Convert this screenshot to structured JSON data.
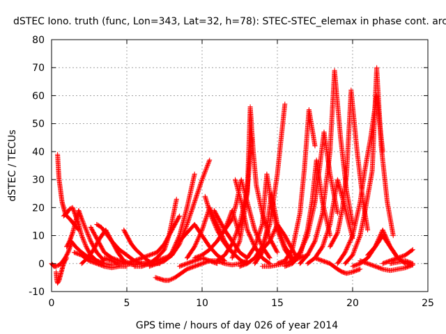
{
  "chart_data": {
    "type": "scatter",
    "title": "dSTEC Iono. truth (func, Lon=343, Lat=32, h=78): STEC-STEC_elemax in phase cont. arc",
    "xlabel": "GPS time / hours of day 026 of year 2014",
    "ylabel": "dSTEC  / TECUs",
    "xlim": [
      0,
      25
    ],
    "ylim": [
      -10,
      80
    ],
    "xticks": [
      0,
      5,
      10,
      15,
      20,
      25
    ],
    "yticks": [
      -10,
      0,
      10,
      20,
      30,
      40,
      50,
      60,
      70,
      80
    ],
    "grid": true,
    "marker": "+",
    "color": "#ff0000",
    "series": [
      {
        "x": [
          0.0,
          0.15,
          0.3,
          0.5,
          0.7,
          0.9,
          1.1,
          1.3
        ],
        "y": [
          0,
          -1,
          -1,
          -0.5,
          0.5,
          2,
          4,
          7
        ]
      },
      {
        "x": [
          0.3,
          0.35,
          0.4,
          0.5,
          0.6,
          0.7,
          0.8,
          0.9,
          1.0
        ],
        "y": [
          -3,
          -6,
          -7,
          -6,
          -4,
          -2,
          0,
          1,
          2
        ]
      },
      {
        "x": [
          0.4,
          0.45,
          0.5,
          0.6,
          0.7,
          0.8,
          0.9,
          1.0,
          1.2,
          1.5,
          1.8
        ],
        "y": [
          39,
          34,
          30,
          26,
          22,
          20,
          18,
          17,
          16,
          14,
          12
        ]
      },
      {
        "x": [
          0.8,
          1.0,
          1.2,
          1.4,
          1.6,
          1.8,
          2.0,
          2.3,
          2.6,
          3.0,
          3.4
        ],
        "y": [
          17,
          18,
          19.5,
          20,
          17,
          14,
          10,
          6,
          3,
          1,
          0
        ]
      },
      {
        "x": [
          1.0,
          1.2,
          1.4,
          1.6,
          1.8,
          2.0,
          2.3,
          2.6,
          3.0,
          3.5
        ],
        "y": [
          6,
          8,
          11,
          15,
          19,
          16,
          12,
          8,
          4,
          1
        ]
      },
      {
        "x": [
          1.3,
          1.6,
          2.0,
          2.5,
          3.0,
          3.5,
          4.0,
          4.5
        ],
        "y": [
          8,
          6,
          4,
          2,
          1,
          0,
          -0.5,
          -0.5
        ]
      },
      {
        "x": [
          1.5,
          2.0,
          2.5,
          3.0,
          3.5,
          4.0,
          4.5,
          5.0
        ],
        "y": [
          4,
          3,
          1,
          0,
          -1,
          -1.5,
          -1,
          -1
        ]
      },
      {
        "x": [
          2.0,
          2.4,
          2.8,
          3.2,
          3.6,
          4.0,
          4.4,
          4.8,
          5.2
        ],
        "y": [
          0,
          2,
          5,
          9,
          12,
          8,
          4,
          1,
          0
        ]
      },
      {
        "x": [
          2.6,
          2.8,
          3.0,
          3.2,
          3.5,
          4.0,
          4.5,
          5.0,
          5.5
        ],
        "y": [
          13,
          11,
          9,
          7,
          4,
          2,
          1,
          0,
          0
        ]
      },
      {
        "x": [
          3.0,
          3.3,
          3.6,
          4.0,
          4.5,
          5.0,
          5.5,
          6.0
        ],
        "y": [
          14,
          13,
          11,
          8,
          5,
          3,
          1,
          0
        ]
      },
      {
        "x": [
          3.5,
          4.0,
          4.5,
          5.0,
          5.5,
          6.0,
          6.5
        ],
        "y": [
          2,
          1,
          0,
          0,
          -0.5,
          0,
          0.5
        ]
      },
      {
        "x": [
          4.8,
          5.0,
          5.3,
          5.6,
          6.0,
          6.4,
          6.8,
          7.2
        ],
        "y": [
          12,
          10,
          7,
          5,
          3,
          1,
          0,
          0
        ]
      },
      {
        "x": [
          5.0,
          5.5,
          6.0,
          6.5,
          7.0,
          7.5,
          8.0,
          8.5
        ],
        "y": [
          0,
          1,
          2,
          3,
          4,
          7,
          12,
          17
        ]
      },
      {
        "x": [
          5.5,
          6.0,
          6.5,
          7.0,
          7.5,
          8.0
        ],
        "y": [
          -1,
          -1,
          0,
          1,
          2,
          3
        ]
      },
      {
        "x": [
          6.0,
          6.5,
          7.0,
          7.5,
          7.8,
          8.0,
          8.3
        ],
        "y": [
          0,
          0,
          2,
          5,
          10,
          15,
          23
        ]
      },
      {
        "x": [
          6.5,
          7.0,
          7.5,
          8.0,
          8.5,
          9.0,
          9.5
        ],
        "y": [
          -1,
          0,
          1,
          4,
          10,
          20,
          32
        ]
      },
      {
        "x": [
          6.9,
          7.2,
          7.5,
          7.8,
          8.2,
          8.6,
          9.0,
          9.5,
          10.0
        ],
        "y": [
          -5,
          -5.5,
          -6,
          -6,
          -5,
          -3.5,
          -2,
          -1,
          0
        ]
      },
      {
        "x": [
          7.0,
          7.5,
          8.0,
          8.5,
          9.0,
          9.5,
          10.0,
          10.5
        ],
        "y": [
          0,
          1,
          3,
          7,
          14,
          22,
          30,
          37
        ]
      },
      {
        "x": [
          8.5,
          9.0,
          9.5,
          10.0,
          10.5,
          11.0,
          11.5
        ],
        "y": [
          8,
          11,
          14,
          10,
          6,
          3,
          1
        ]
      },
      {
        "x": [
          8.5,
          9.0,
          9.5,
          10.0,
          10.5,
          11.0
        ],
        "y": [
          -1,
          0,
          1,
          2,
          1,
          0
        ]
      },
      {
        "x": [
          9.0,
          9.5,
          10.0,
          10.5,
          11.0,
          11.5,
          12.0
        ],
        "y": [
          2,
          6,
          12,
          20,
          14,
          8,
          4
        ]
      },
      {
        "x": [
          9.5,
          10.0,
          10.5,
          11.0,
          11.5,
          12.0,
          12.5
        ],
        "y": [
          2,
          3,
          5,
          8,
          12,
          19,
          10
        ]
      },
      {
        "x": [
          10.0,
          10.5,
          11.0,
          11.5,
          12.0,
          12.5,
          13.0
        ],
        "y": [
          0,
          1,
          1,
          0,
          -0.5,
          0,
          1
        ]
      },
      {
        "x": [
          10.2,
          10.6,
          11.0,
          11.4,
          11.8,
          12.2,
          12.6,
          13.0
        ],
        "y": [
          24,
          17,
          12,
          8,
          5,
          3,
          1,
          0
        ]
      },
      {
        "x": [
          10.8,
          11.0,
          11.5,
          12.0,
          12.5,
          13.0
        ],
        "y": [
          19,
          17,
          12,
          8,
          4,
          2
        ]
      },
      {
        "x": [
          11.0,
          11.5,
          12.0,
          12.5,
          13.0,
          13.3
        ],
        "y": [
          1,
          3,
          7,
          14,
          26,
          45
        ]
      },
      {
        "x": [
          11.5,
          12.0,
          12.3,
          12.6,
          13.0,
          13.5,
          14.0,
          14.5
        ],
        "y": [
          12,
          16,
          22,
          30,
          22,
          12,
          6,
          2
        ]
      },
      {
        "x": [
          12.0,
          12.5,
          13.0,
          13.2,
          13.4,
          13.6,
          14.0,
          14.5,
          15.0
        ],
        "y": [
          2,
          8,
          25,
          56,
          40,
          28,
          18,
          9,
          4
        ]
      },
      {
        "x": [
          12.2,
          12.6,
          13.0,
          13.5,
          14.0,
          14.5
        ],
        "y": [
          30,
          22,
          12,
          6,
          2,
          0
        ]
      },
      {
        "x": [
          12.5,
          13.0,
          13.5,
          14.0,
          14.5,
          15.0,
          15.5
        ],
        "y": [
          -1,
          0,
          2,
          6,
          14,
          32,
          57
        ]
      },
      {
        "x": [
          13.0,
          13.5,
          14.0,
          14.3,
          14.6,
          15.0,
          15.5,
          16.0
        ],
        "y": [
          2,
          6,
          14,
          32,
          22,
          12,
          5,
          1
        ]
      },
      {
        "x": [
          13.5,
          14.0,
          14.3,
          14.6,
          15.0,
          15.5,
          16.0
        ],
        "y": [
          0,
          4,
          12,
          25,
          14,
          6,
          2
        ]
      },
      {
        "x": [
          14.0,
          14.5,
          15.0,
          15.5,
          16.0,
          16.3
        ],
        "y": [
          5,
          8,
          14,
          10,
          5,
          2
        ]
      },
      {
        "x": [
          14.0,
          14.5,
          15.0,
          15.5,
          16.0,
          16.5,
          17.0
        ],
        "y": [
          -1,
          -1,
          -0.5,
          0,
          1,
          2,
          3
        ]
      },
      {
        "x": [
          15.0,
          15.5,
          16.0,
          16.5,
          16.8,
          17.1,
          17.5
        ],
        "y": [
          0,
          1,
          5,
          18,
          34,
          55,
          42
        ]
      },
      {
        "x": [
          15.5,
          16.0,
          16.5,
          17.0,
          17.3,
          17.6,
          18.0,
          18.5
        ],
        "y": [
          -1,
          0,
          3,
          12,
          22,
          37,
          22,
          10
        ]
      },
      {
        "x": [
          16.0,
          16.5,
          17.0,
          17.5,
          17.8,
          18.1,
          18.5,
          19.0
        ],
        "y": [
          1,
          4,
          10,
          22,
          34,
          47,
          32,
          18
        ]
      },
      {
        "x": [
          16.5,
          17.0,
          17.5,
          18.0,
          18.5,
          18.8,
          19.2,
          19.6,
          20.0
        ],
        "y": [
          0,
          3,
          8,
          18,
          40,
          69,
          45,
          26,
          14
        ]
      },
      {
        "x": [
          17.0,
          17.5,
          18.0,
          18.5,
          19.0,
          19.5,
          20.0
        ],
        "y": [
          0,
          2,
          6,
          14,
          30,
          20,
          9
        ]
      },
      {
        "x": [
          17.5,
          18.0,
          18.5,
          19.0,
          19.3,
          19.6,
          20.0,
          20.5
        ],
        "y": [
          2,
          1,
          0,
          -2,
          -3,
          -3.5,
          -3,
          -2
        ]
      },
      {
        "x": [
          18.5,
          19.0,
          19.3,
          19.6,
          19.9,
          20.3,
          20.7,
          21.0
        ],
        "y": [
          6,
          11,
          19,
          32,
          62,
          40,
          22,
          12
        ]
      },
      {
        "x": [
          19.0,
          19.5,
          20.0,
          20.5,
          20.8,
          21.2,
          21.6,
          22.0
        ],
        "y": [
          0,
          4,
          10,
          22,
          33,
          45,
          60,
          40
        ]
      },
      {
        "x": [
          19.5,
          20.0,
          20.5,
          20.8,
          21.0,
          21.3,
          21.6,
          21.9,
          22.3,
          22.7
        ],
        "y": [
          0,
          3,
          10,
          18,
          24,
          33,
          70,
          42,
          22,
          10
        ]
      },
      {
        "x": [
          20.0,
          20.5,
          21.0,
          21.5,
          22.0,
          22.5,
          23.0
        ],
        "y": [
          -1,
          0,
          2,
          6,
          12,
          6,
          2
        ]
      },
      {
        "x": [
          20.5,
          21.0,
          21.5,
          22.0,
          22.5,
          23.0,
          23.5,
          24.0
        ],
        "y": [
          1,
          0,
          -1,
          -2,
          -2.5,
          -2,
          -1.5,
          -0.5
        ]
      },
      {
        "x": [
          21.0,
          21.5,
          22.0,
          22.5,
          23.0,
          23.5,
          24.0
        ],
        "y": [
          3,
          6,
          10,
          6,
          2,
          0,
          -0.5
        ]
      },
      {
        "x": [
          22.0,
          22.5,
          23.0,
          23.5,
          24.0
        ],
        "y": [
          0,
          1,
          2,
          3,
          5
        ]
      },
      {
        "x": [
          22.5,
          23.0,
          23.5,
          24.0
        ],
        "y": [
          0,
          0.5,
          1,
          0
        ]
      }
    ]
  }
}
